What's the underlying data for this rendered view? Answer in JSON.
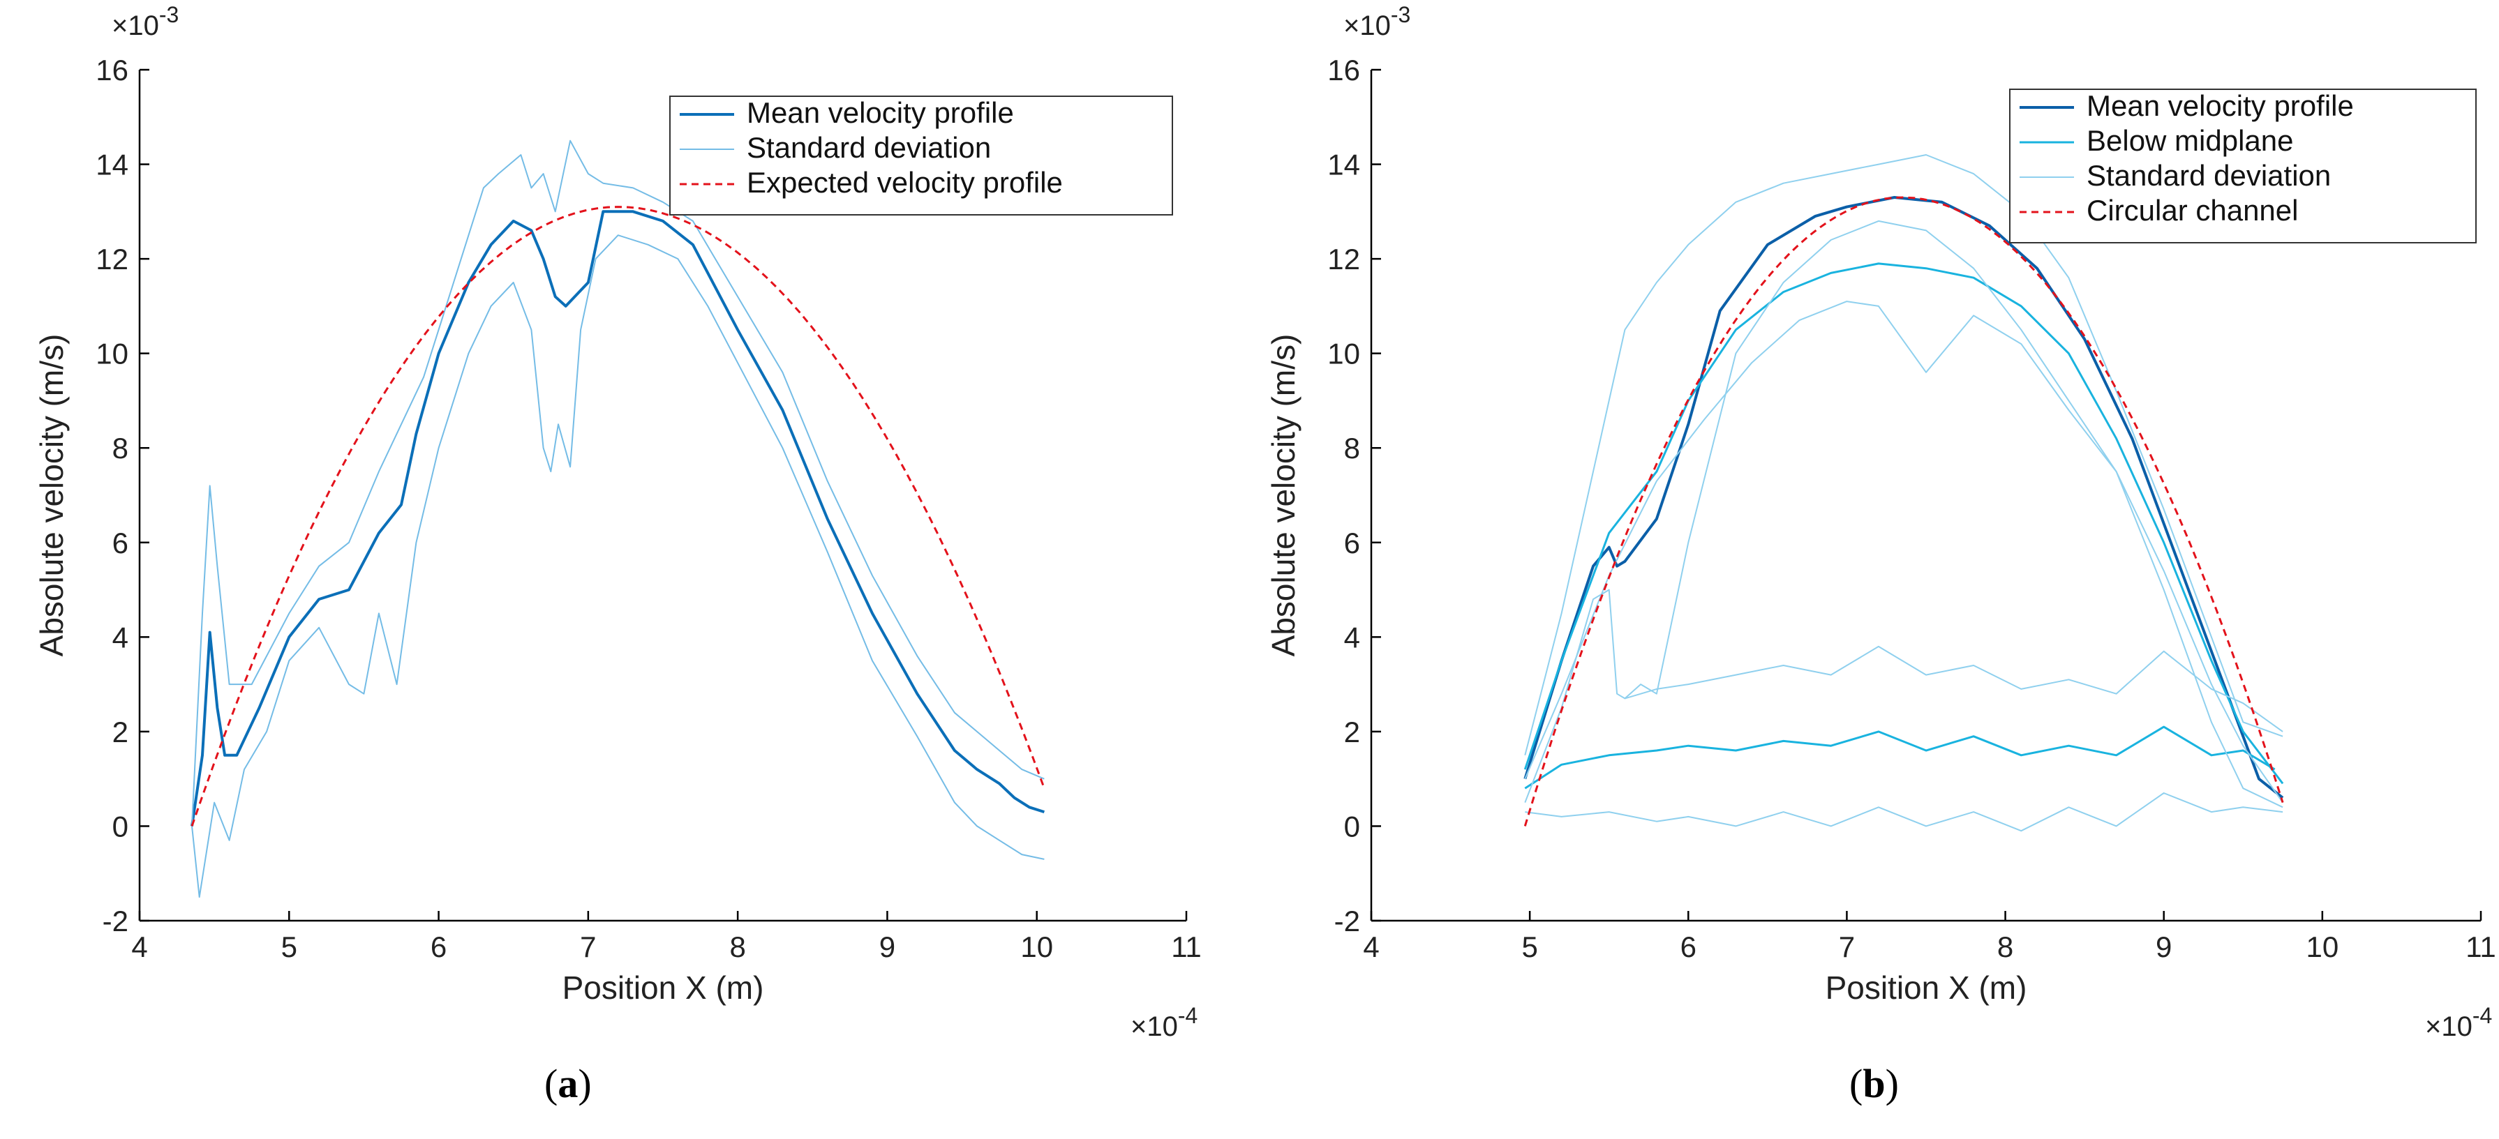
{
  "chart_data": [
    {
      "id": "a",
      "type": "line",
      "caption_letter": "a",
      "xlabel": "Position X (m)",
      "ylabel": "Absolute velocity (m/s)",
      "x_exponent": "×10^-4",
      "y_exponent": "×10^-3",
      "xlim": [
        4,
        11
      ],
      "ylim": [
        -2,
        16
      ],
      "xticks": [
        "4",
        "5",
        "6",
        "7",
        "8",
        "9",
        "10",
        "11"
      ],
      "yticks": [
        "-2",
        "0",
        "2",
        "4",
        "6",
        "8",
        "10",
        "12",
        "14",
        "16"
      ],
      "series": [
        {
          "name": "Mean velocity profile",
          "color": "#0b6fb8",
          "style": "solid",
          "width": "thick",
          "x": [
            4.35,
            4.42,
            4.47,
            4.52,
            4.57,
            4.65,
            4.8,
            5.0,
            5.2,
            5.4,
            5.6,
            5.75,
            5.85,
            6.0,
            6.2,
            6.35,
            6.5,
            6.62,
            6.7,
            6.78,
            6.85,
            7.0,
            7.1,
            7.3,
            7.5,
            7.7,
            8.0,
            8.3,
            8.6,
            8.9,
            9.2,
            9.45,
            9.6,
            9.75,
            9.85,
            9.95,
            10.05
          ],
          "y": [
            0.0,
            1.5,
            4.1,
            2.5,
            1.5,
            1.5,
            2.5,
            4.0,
            4.8,
            5.0,
            6.2,
            6.8,
            8.3,
            10.0,
            11.5,
            12.3,
            12.8,
            12.6,
            12.0,
            11.2,
            11.0,
            11.5,
            13.0,
            13.0,
            12.8,
            12.3,
            10.5,
            8.8,
            6.5,
            4.5,
            2.8,
            1.6,
            1.2,
            0.9,
            0.6,
            0.4,
            0.3
          ]
        },
        {
          "name": "Standard deviation",
          "color": "#74bce6",
          "style": "solid",
          "width": "thin",
          "x": [
            4.35,
            4.42,
            4.47,
            4.52,
            4.6,
            4.75,
            5.0,
            5.2,
            5.4,
            5.6,
            5.75,
            5.9,
            6.1,
            6.3,
            6.4,
            6.55,
            6.62,
            6.7,
            6.78,
            6.88,
            7.0,
            7.1,
            7.3,
            7.5,
            7.7,
            8.0,
            8.3,
            8.6,
            8.9,
            9.2,
            9.45,
            9.6,
            9.75,
            9.9,
            10.05
          ],
          "y": [
            0.0,
            4.5,
            7.2,
            5.5,
            3.0,
            3.0,
            4.5,
            5.5,
            6.0,
            7.5,
            8.5,
            9.5,
            11.5,
            13.5,
            13.8,
            14.2,
            13.5,
            13.8,
            13.0,
            14.5,
            13.8,
            13.6,
            13.5,
            13.2,
            12.8,
            11.2,
            9.6,
            7.3,
            5.3,
            3.6,
            2.4,
            2.0,
            1.6,
            1.2,
            1.0
          ],
          "show_in_legend": true
        },
        {
          "name": "Standard deviation (lower)",
          "color": "#74bce6",
          "style": "solid",
          "width": "thin",
          "x": [
            4.35,
            4.4,
            4.45,
            4.5,
            4.6,
            4.7,
            4.85,
            5.0,
            5.2,
            5.4,
            5.5,
            5.6,
            5.72,
            5.85,
            6.0,
            6.2,
            6.35,
            6.5,
            6.62,
            6.7,
            6.75,
            6.8,
            6.88,
            6.95,
            7.05,
            7.2,
            7.4,
            7.6,
            7.8,
            8.0,
            8.3,
            8.6,
            8.9,
            9.2,
            9.45,
            9.6,
            9.75,
            9.9,
            10.05
          ],
          "y": [
            0.0,
            -1.5,
            -0.5,
            0.5,
            -0.3,
            1.2,
            2.0,
            3.5,
            4.2,
            3.0,
            2.8,
            4.5,
            3.0,
            6.0,
            8.0,
            10.0,
            11.0,
            11.5,
            10.5,
            8.0,
            7.5,
            8.5,
            7.6,
            10.5,
            12.0,
            12.5,
            12.3,
            12.0,
            11.0,
            9.8,
            8.0,
            5.8,
            3.5,
            1.9,
            0.5,
            0.0,
            -0.3,
            -0.6,
            -0.7
          ],
          "show_in_legend": false
        },
        {
          "name": "Expected velocity profile",
          "color": "#e3121b",
          "style": "dashed",
          "width": "medium",
          "parabola": {
            "x_start": 4.35,
            "x_end": 10.05,
            "peak_x": 7.2,
            "peak_y": 13.1,
            "y_end": 0.8
          }
        }
      ],
      "legend": [
        "Mean velocity profile",
        "Standard deviation",
        "Expected velocity profile"
      ],
      "legend_position": "top-right"
    },
    {
      "id": "b",
      "type": "line",
      "caption_letter": "b",
      "xlabel": "Position X (m)",
      "ylabel": "Absolute velocity (m/s)",
      "x_exponent": "×10^-4",
      "y_exponent": "×10^-3",
      "xlim": [
        4,
        11
      ],
      "ylim": [
        -2,
        16
      ],
      "xticks": [
        "4",
        "5",
        "6",
        "7",
        "8",
        "9",
        "10",
        "11"
      ],
      "yticks": [
        "-2",
        "0",
        "2",
        "4",
        "6",
        "8",
        "10",
        "12",
        "14",
        "16"
      ],
      "series": [
        {
          "name": "Mean velocity profile",
          "color": "#0b5fa8",
          "style": "solid",
          "width": "thick",
          "x": [
            4.97,
            5.2,
            5.4,
            5.5,
            5.55,
            5.6,
            5.8,
            6.0,
            6.2,
            6.5,
            6.8,
            7.0,
            7.3,
            7.6,
            7.9,
            8.2,
            8.5,
            8.8,
            9.1,
            9.4,
            9.6,
            9.75
          ],
          "y": [
            1.0,
            3.5,
            5.5,
            5.9,
            5.5,
            5.6,
            6.5,
            8.5,
            10.9,
            12.3,
            12.9,
            13.1,
            13.3,
            13.2,
            12.7,
            11.8,
            10.3,
            8.2,
            5.5,
            2.8,
            1.0,
            0.6
          ]
        },
        {
          "name": "Below midplane",
          "color": "#19b3df",
          "style": "solid",
          "width": "medium",
          "x": [
            4.97,
            5.2,
            5.5,
            5.8,
            6.0,
            6.3,
            6.6,
            6.9,
            7.2,
            7.5,
            7.8,
            8.1,
            8.4,
            8.7,
            9.0,
            9.3,
            9.5,
            9.7
          ],
          "y": [
            0.8,
            1.3,
            1.5,
            1.6,
            1.7,
            1.6,
            1.8,
            1.7,
            2.0,
            1.6,
            1.9,
            1.5,
            1.7,
            1.5,
            2.1,
            1.5,
            1.6,
            1.2
          ]
        },
        {
          "name": "Below midplane (upper)",
          "color": "#19b3df",
          "style": "solid",
          "width": "medium",
          "x": [
            4.97,
            5.2,
            5.5,
            5.8,
            6.0,
            6.3,
            6.6,
            6.9,
            7.2,
            7.5,
            7.8,
            8.1,
            8.4,
            8.7,
            9.0,
            9.3,
            9.5,
            9.75
          ],
          "y": [
            1.2,
            3.5,
            6.2,
            7.5,
            9.0,
            10.5,
            11.3,
            11.7,
            11.9,
            11.8,
            11.6,
            11.0,
            10.0,
            8.2,
            6.0,
            3.5,
            2.0,
            0.9
          ],
          "show_in_legend": false
        },
        {
          "name": "Standard deviation",
          "color": "#8fd0ee",
          "style": "solid",
          "width": "thin",
          "x": [
            4.97,
            5.2,
            5.4,
            5.5,
            5.6,
            5.8,
            6.0,
            6.3,
            6.6,
            6.9,
            7.2,
            7.5,
            7.8,
            8.1,
            8.4,
            8.7,
            9.0,
            9.3,
            9.5,
            9.75
          ],
          "y": [
            1.5,
            4.5,
            7.5,
            9.0,
            10.5,
            11.5,
            12.3,
            13.2,
            13.6,
            13.8,
            14.0,
            14.2,
            13.8,
            13.0,
            11.6,
            9.2,
            6.7,
            4.0,
            2.2,
            1.9
          ],
          "show_in_legend": true
        },
        {
          "name": "Standard deviation (lower of mean)",
          "color": "#8fd0ee",
          "style": "solid",
          "width": "thin",
          "x": [
            4.97,
            5.2,
            5.4,
            5.5,
            5.55,
            5.6,
            5.7,
            5.8,
            6.0,
            6.3,
            6.6,
            6.9,
            7.2,
            7.5,
            7.8,
            8.1,
            8.4,
            8.7,
            9.0,
            9.3,
            9.5,
            9.75
          ],
          "y": [
            0.5,
            2.5,
            4.8,
            5.0,
            2.8,
            2.7,
            3.0,
            2.8,
            6.0,
            10.0,
            11.5,
            12.4,
            12.8,
            12.6,
            11.8,
            10.5,
            9.0,
            7.5,
            5.0,
            2.2,
            0.8,
            0.4
          ],
          "show_in_legend": false
        },
        {
          "name": "Standard deviation (upper of below)",
          "color": "#8fd0ee",
          "style": "solid",
          "width": "thin",
          "x": [
            5.6,
            5.8,
            6.0,
            6.3,
            6.6,
            6.9,
            7.2,
            7.5,
            7.8,
            8.1,
            8.4,
            8.7,
            9.0,
            9.3,
            9.5,
            9.75
          ],
          "y": [
            2.7,
            2.9,
            3.0,
            3.2,
            3.4,
            3.2,
            3.8,
            3.2,
            3.4,
            2.9,
            3.1,
            2.8,
            3.7,
            2.9,
            2.6,
            2.0
          ],
          "show_in_legend": false
        },
        {
          "name": "Standard deviation (lower of below)",
          "color": "#8fd0ee",
          "style": "solid",
          "width": "thin",
          "x": [
            4.97,
            5.2,
            5.5,
            5.8,
            6.0,
            6.3,
            6.6,
            6.9,
            7.2,
            7.5,
            7.8,
            8.1,
            8.4,
            8.7,
            9.0,
            9.3,
            9.5,
            9.75
          ],
          "y": [
            0.3,
            0.2,
            0.3,
            0.1,
            0.2,
            0.0,
            0.3,
            0.0,
            0.4,
            0.0,
            0.3,
            -0.1,
            0.4,
            0.0,
            0.7,
            0.3,
            0.4,
            0.3
          ],
          "show_in_legend": false
        },
        {
          "name": "Standard deviation (upper band below)",
          "color": "#8fd0ee",
          "style": "solid",
          "width": "thin",
          "x": [
            4.97,
            5.2,
            5.5,
            5.8,
            6.1,
            6.4,
            6.7,
            7.0,
            7.2,
            7.5,
            7.8,
            8.1,
            8.4,
            8.7,
            9.0,
            9.3,
            9.5,
            9.75
          ],
          "y": [
            1.0,
            2.8,
            5.3,
            7.3,
            8.6,
            9.8,
            10.7,
            11.1,
            11.0,
            9.6,
            10.8,
            10.2,
            8.8,
            7.5,
            5.4,
            3.0,
            1.7,
            0.5
          ],
          "show_in_legend": false
        },
        {
          "name": "Circular channel",
          "color": "#e3121b",
          "style": "dashed",
          "width": "medium",
          "parabola": {
            "x_start": 4.97,
            "x_end": 9.75,
            "peak_x": 7.35,
            "peak_y": 13.3,
            "y_start": 0.0,
            "y_end": 0.5
          }
        }
      ],
      "legend": [
        "Mean velocity profile",
        "Below midplane",
        "Standard deviation",
        "Circular channel"
      ],
      "legend_position": "top-right"
    }
  ]
}
